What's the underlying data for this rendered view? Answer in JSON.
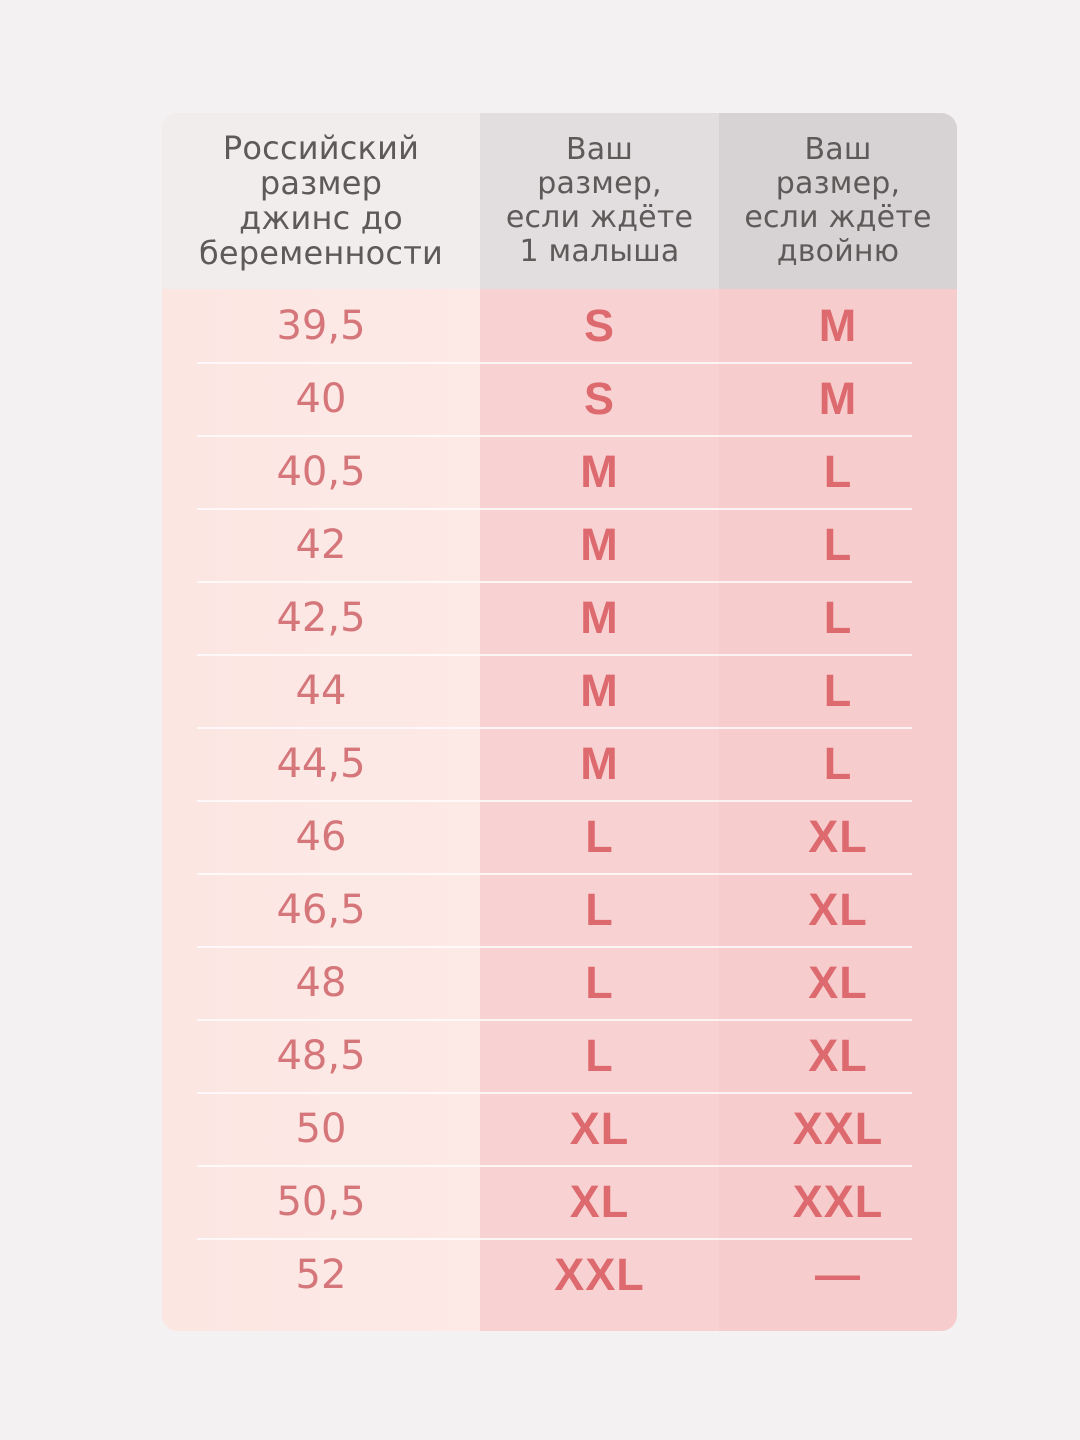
{
  "headers": {
    "col1": "Российский\nразмер\nджинс до\nбеременности",
    "col2": "Ваш\nразмер,\nесли ждёте\n1 малыша",
    "col3": "Ваш\nразмер,\nесли ждёте\nдвойню"
  },
  "colors": {
    "background": "#f3f1f2",
    "header_text": "#5f5a5a",
    "value_text": "#dd6a6e"
  },
  "rows": [
    {
      "ru_size": "39,5",
      "single": "S",
      "twins": "M"
    },
    {
      "ru_size": "40",
      "single": "S",
      "twins": "M"
    },
    {
      "ru_size": "40,5",
      "single": "M",
      "twins": "L"
    },
    {
      "ru_size": "42",
      "single": "M",
      "twins": "L"
    },
    {
      "ru_size": "42,5",
      "single": "M",
      "twins": "L"
    },
    {
      "ru_size": "44",
      "single": "M",
      "twins": "L"
    },
    {
      "ru_size": "44,5",
      "single": "M",
      "twins": "L"
    },
    {
      "ru_size": "46",
      "single": "L",
      "twins": "XL"
    },
    {
      "ru_size": "46,5",
      "single": "L",
      "twins": "XL"
    },
    {
      "ru_size": "48",
      "single": "L",
      "twins": "XL"
    },
    {
      "ru_size": "48,5",
      "single": "L",
      "twins": "XL"
    },
    {
      "ru_size": "50",
      "single": "XL",
      "twins": "XXL"
    },
    {
      "ru_size": "50,5",
      "single": "XL",
      "twins": "XXL"
    },
    {
      "ru_size": "52",
      "single": "XXL",
      "twins": "—"
    }
  ]
}
